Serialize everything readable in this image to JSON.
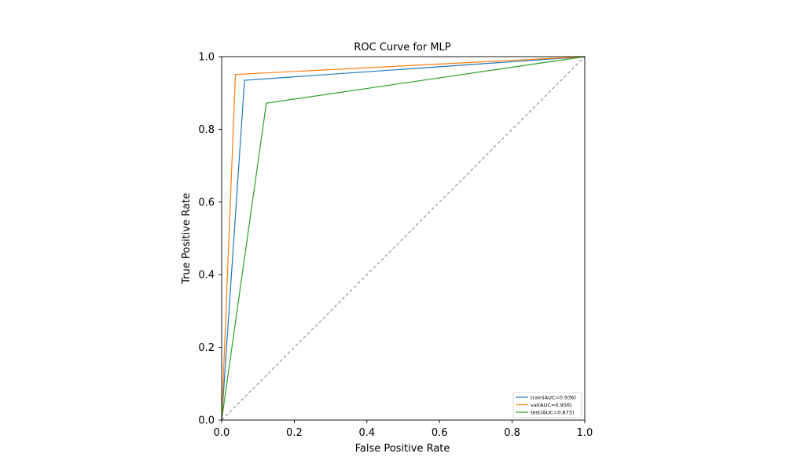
{
  "chart_data": {
    "type": "line",
    "title": "ROC Curve for MLP",
    "xlabel": "False Positive Rate",
    "ylabel": "True Positive Rate",
    "xlim": [
      0,
      1
    ],
    "ylim": [
      0,
      1
    ],
    "x_ticks": [
      "0.0",
      "0.2",
      "0.4",
      "0.6",
      "0.8",
      "1.0"
    ],
    "y_ticks": [
      "0.0",
      "0.2",
      "0.4",
      "0.6",
      "0.8",
      "1.0"
    ],
    "grid": false,
    "legend_position": "bottom-right",
    "series": [
      {
        "name": "train(AUC=0.936)",
        "color": "#1f77b4",
        "x": [
          0,
          0.063,
          1
        ],
        "y": [
          0,
          0.935,
          1
        ]
      },
      {
        "name": "val(AUC=0.956)",
        "color": "#ff7f0e",
        "x": [
          0,
          0.038,
          1
        ],
        "y": [
          0,
          0.951,
          1
        ]
      },
      {
        "name": "test(AUC=0.873)",
        "color": "#2ca02c",
        "x": [
          0,
          0.123,
          1
        ],
        "y": [
          0,
          0.872,
          1
        ]
      }
    ],
    "reference_line": {
      "x": [
        0,
        1
      ],
      "y": [
        0,
        1
      ],
      "color": "#808080",
      "style": "dashed"
    }
  }
}
